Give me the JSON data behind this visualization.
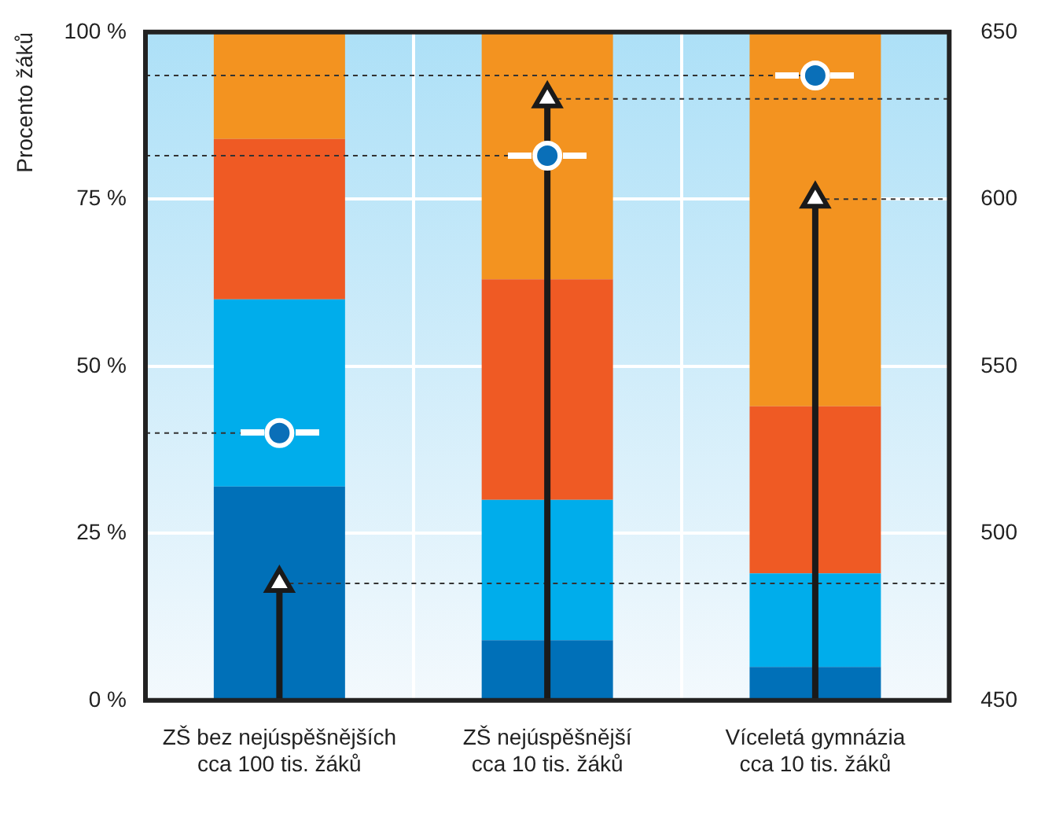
{
  "chart_data": {
    "type": "bar",
    "stacked": true,
    "ylabel": "Procento žáků",
    "categories": [
      "ZŠ bez nejúspěšnějších\ncca 100 tis. žáků",
      "ZŠ nejúspěšnější\ncca 10 tis. žáků",
      "Víceletá gymnázia\ncca 10 tis. žáků"
    ],
    "series": [
      {
        "color": "#0070b8",
        "values": [
          32,
          9,
          5
        ]
      },
      {
        "color": "#00adeb",
        "values": [
          28,
          21,
          14
        ]
      },
      {
        "color": "#ef5a24",
        "values": [
          24,
          33,
          25
        ]
      },
      {
        "color": "#f39320",
        "values": [
          16,
          37,
          56
        ]
      },
      {
        "type": "scatter",
        "marker": "circle",
        "axis": "y2",
        "color": "#0a6fb8",
        "values": [
          530,
          613,
          637
        ]
      },
      {
        "type": "lollipop",
        "marker": "triangle",
        "axis": "y2",
        "color": "#1a1a1a",
        "values": [
          485,
          630,
          600
        ]
      }
    ],
    "ylim": [
      0,
      100
    ],
    "yticks": [
      {
        "value": 0,
        "label": "0 %"
      },
      {
        "value": 25,
        "label": "25 %"
      },
      {
        "value": 50,
        "label": "50 %"
      },
      {
        "value": 75,
        "label": "75 %"
      },
      {
        "value": 100,
        "label": "100 %"
      }
    ],
    "ref_lines": [
      {
        "axis": "y2",
        "value": 530,
        "color": "#333333",
        "line_style": "dotted"
      },
      {
        "axis": "y2",
        "value": 613,
        "color": "#333333",
        "line_style": "dotted"
      },
      {
        "axis": "y2",
        "value": 637,
        "color": "#333333",
        "line_style": "dotted"
      },
      {
        "axis": "y2",
        "value": 485,
        "color": "#333333",
        "line_style": "dotted"
      },
      {
        "axis": "y2",
        "value": 630,
        "color": "#333333",
        "line_style": "dotted"
      },
      {
        "axis": "y2",
        "value": 600,
        "color": "#333333",
        "line_style": "dotted"
      }
    ],
    "y2lim": [
      450,
      650
    ],
    "y2ticks": [
      450,
      500,
      550,
      600,
      650
    ],
    "grid": true
  }
}
